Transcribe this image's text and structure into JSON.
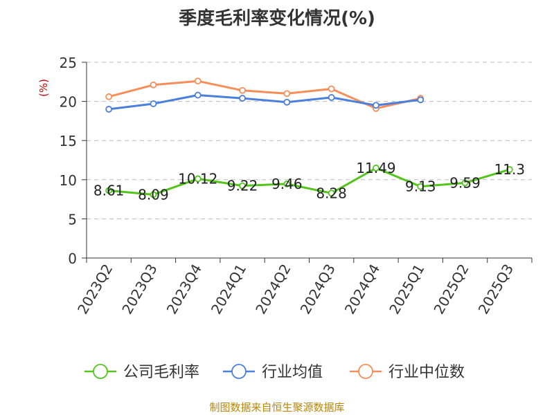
{
  "chart_data": {
    "type": "line",
    "title": "季度毛利率变化情况(%)",
    "ylabel": "(%)",
    "xlabel": "",
    "ylim": [
      0,
      25
    ],
    "yticks": [
      0,
      5,
      10,
      15,
      20,
      25
    ],
    "grid": true,
    "legend_position": "bottom",
    "categories": [
      "2023Q2",
      "2023Q3",
      "2023Q4",
      "2024Q1",
      "2024Q2",
      "2024Q3",
      "2024Q4",
      "2025Q1",
      "2025Q2",
      "2025Q3"
    ],
    "series": [
      {
        "name": "公司毛利率",
        "color": "#52c41a",
        "show_labels": true,
        "values": [
          8.61,
          8.09,
          10.12,
          9.22,
          9.46,
          8.28,
          11.49,
          9.13,
          9.59,
          11.3
        ],
        "labels": [
          "8.61",
          "8.09",
          "10.12",
          "9.22",
          "9.46",
          "8.28",
          "11.49",
          "9.13",
          "9.59",
          "11.3"
        ]
      },
      {
        "name": "行业均值",
        "color": "#4a7fdc",
        "show_labels": false,
        "values": [
          19.0,
          19.7,
          20.8,
          20.4,
          19.9,
          20.5,
          19.5,
          20.2,
          null,
          null
        ]
      },
      {
        "name": "行业中位数",
        "color": "#f78e5a",
        "show_labels": false,
        "values": [
          20.6,
          22.1,
          22.6,
          21.4,
          21.0,
          21.6,
          19.1,
          20.4,
          null,
          null
        ]
      }
    ]
  },
  "source_note": "制图数据来自恒生聚源数据库"
}
